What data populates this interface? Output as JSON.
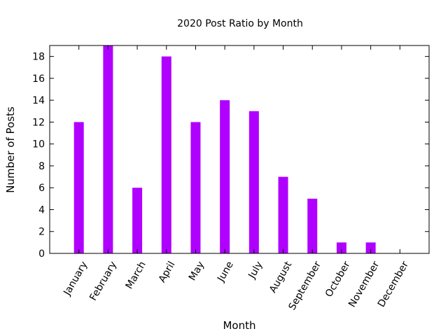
{
  "chart_data": {
    "type": "bar",
    "title": "2020 Post Ratio by Month",
    "xlabel": "Month",
    "ylabel": "Number of Posts",
    "categories": [
      "January",
      "February",
      "March",
      "April",
      "May",
      "June",
      "July",
      "August",
      "September",
      "October",
      "November",
      "December"
    ],
    "values": [
      12,
      19,
      6,
      18,
      12,
      14,
      13,
      7,
      5,
      1,
      1,
      0
    ],
    "ylim": [
      0,
      19
    ],
    "yticks": [
      0,
      2,
      4,
      6,
      8,
      10,
      12,
      14,
      16,
      18
    ],
    "bar_color": "#b000ff",
    "grid": false,
    "legend": "none"
  }
}
